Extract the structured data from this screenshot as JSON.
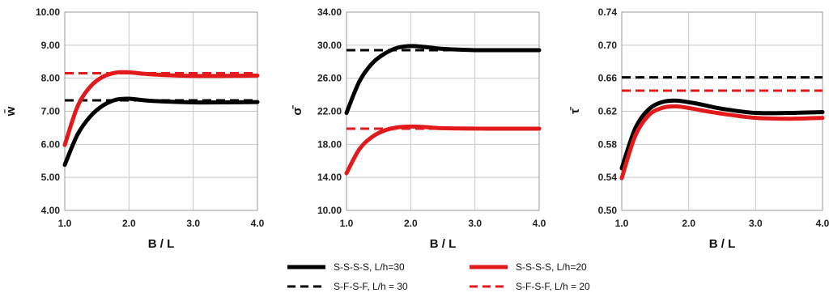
{
  "chart_data": [
    {
      "type": "line",
      "xlabel": "B / L",
      "ylabel": "w̄",
      "xlim": [
        1.0,
        4.0
      ],
      "ylim": [
        4.0,
        10.0
      ],
      "xticks": [
        "1.0",
        "2.0",
        "3.0",
        "4.0"
      ],
      "yticks": [
        "4.00",
        "5.00",
        "6.00",
        "7.00",
        "8.00",
        "9.00",
        "10.00"
      ],
      "grid": true,
      "series": [
        {
          "name": "S-S-S-S, L/h=30",
          "color": "#000000",
          "style": "solid",
          "x": [
            1.0,
            1.2,
            1.4,
            1.6,
            1.8,
            2.0,
            2.2,
            2.5,
            3.0,
            3.5,
            4.0
          ],
          "y": [
            5.38,
            6.3,
            6.85,
            7.18,
            7.35,
            7.38,
            7.34,
            7.3,
            7.27,
            7.27,
            7.28
          ]
        },
        {
          "name": "S-S-S-S, L/h=20",
          "color": "#e31a1c",
          "style": "solid",
          "x": [
            1.0,
            1.2,
            1.4,
            1.6,
            1.8,
            2.0,
            2.2,
            2.5,
            3.0,
            3.5,
            4.0
          ],
          "y": [
            5.98,
            7.15,
            7.75,
            8.05,
            8.17,
            8.18,
            8.14,
            8.1,
            8.07,
            8.07,
            8.08
          ]
        },
        {
          "name": "S-F-S-F, L/h = 30",
          "color": "#000000",
          "style": "dashed",
          "x": [
            1.0,
            4.0
          ],
          "y": [
            7.33,
            7.33
          ]
        },
        {
          "name": "S-F-S-F, L/h = 20",
          "color": "#e31a1c",
          "style": "dashed",
          "x": [
            1.0,
            4.0
          ],
          "y": [
            8.15,
            8.15
          ]
        }
      ]
    },
    {
      "type": "line",
      "xlabel": "B / L",
      "ylabel": "σ̄",
      "xlim": [
        1.0,
        4.0
      ],
      "ylim": [
        10.0,
        34.0
      ],
      "xticks": [
        "1.0",
        "2.0",
        "3.0",
        "4.0"
      ],
      "yticks": [
        "10.00",
        "14.00",
        "18.00",
        "22.00",
        "26.00",
        "30.00",
        "34.00"
      ],
      "grid": true,
      "series": [
        {
          "name": "S-S-S-S, L/h=30",
          "color": "#000000",
          "style": "solid",
          "x": [
            1.0,
            1.2,
            1.4,
            1.6,
            1.8,
            2.0,
            2.2,
            2.5,
            3.0,
            3.5,
            4.0
          ],
          "y": [
            21.8,
            25.6,
            27.8,
            29.0,
            29.7,
            29.9,
            29.8,
            29.55,
            29.4,
            29.4,
            29.4
          ]
        },
        {
          "name": "S-S-S-S, L/h=20",
          "color": "#e31a1c",
          "style": "solid",
          "x": [
            1.0,
            1.2,
            1.4,
            1.6,
            1.8,
            2.0,
            2.2,
            2.5,
            3.0,
            3.5,
            4.0
          ],
          "y": [
            14.5,
            17.4,
            18.9,
            19.7,
            20.05,
            20.15,
            20.1,
            19.95,
            19.9,
            19.9,
            19.9
          ]
        },
        {
          "name": "S-F-S-F, L/h = 30",
          "color": "#000000",
          "style": "dashed",
          "x": [
            1.0,
            2.6
          ],
          "y": [
            29.4,
            29.4
          ]
        },
        {
          "name": "S-F-S-F, L/h = 20",
          "color": "#e31a1c",
          "style": "dashed",
          "x": [
            1.0,
            2.6
          ],
          "y": [
            19.9,
            19.9
          ]
        }
      ]
    },
    {
      "type": "line",
      "xlabel": "B / L",
      "ylabel": "τ̄",
      "xlim": [
        1.0,
        4.0
      ],
      "ylim": [
        0.5,
        0.74
      ],
      "xticks": [
        "1.0",
        "2.0",
        "3.0",
        "4.0"
      ],
      "yticks": [
        "0.50",
        "0.54",
        "0.58",
        "0.62",
        "0.66",
        "0.70",
        "0.74"
      ],
      "grid": true,
      "series": [
        {
          "name": "S-S-S-S, L/h=30",
          "color": "#000000",
          "style": "solid",
          "x": [
            1.0,
            1.2,
            1.4,
            1.6,
            1.8,
            2.0,
            2.2,
            2.5,
            3.0,
            3.5,
            4.0
          ],
          "y": [
            0.551,
            0.599,
            0.622,
            0.631,
            0.633,
            0.631,
            0.628,
            0.623,
            0.618,
            0.618,
            0.619
          ]
        },
        {
          "name": "S-S-S-S, L/h=20",
          "color": "#e31a1c",
          "style": "solid",
          "x": [
            1.0,
            1.2,
            1.4,
            1.6,
            1.8,
            2.0,
            2.2,
            2.5,
            3.0,
            3.5,
            4.0
          ],
          "y": [
            0.539,
            0.59,
            0.615,
            0.624,
            0.626,
            0.624,
            0.621,
            0.617,
            0.612,
            0.611,
            0.612
          ]
        },
        {
          "name": "S-F-S-F, L/h = 30",
          "color": "#000000",
          "style": "dashed",
          "x": [
            1.0,
            4.0
          ],
          "y": [
            0.661,
            0.661
          ]
        },
        {
          "name": "S-F-S-F, L/h = 20",
          "color": "#e31a1c",
          "style": "dashed",
          "x": [
            1.0,
            4.0
          ],
          "y": [
            0.645,
            0.645
          ]
        }
      ]
    }
  ],
  "legend": {
    "placement": "bottom",
    "entries": [
      {
        "label": "S-S-S-S, L/h=30",
        "color": "#000000",
        "style": "solid"
      },
      {
        "label": "S-S-S-S, L/h=20",
        "color": "#e31a1c",
        "style": "solid"
      },
      {
        "label": "S-F-S-F, L/h = 30",
        "color": "#000000",
        "style": "dashed"
      },
      {
        "label": "S-F-S-F, L/h = 20",
        "color": "#e31a1c",
        "style": "dashed"
      }
    ]
  }
}
